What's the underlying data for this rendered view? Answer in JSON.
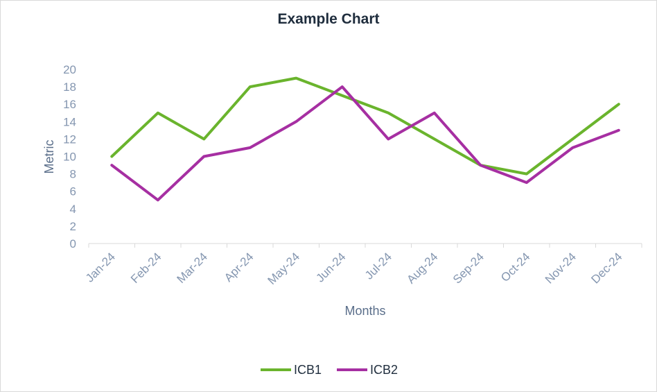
{
  "chart_data": {
    "type": "line",
    "title": "Example Chart",
    "xlabel": "Months",
    "ylabel": "Metric",
    "categories": [
      "Jan-24",
      "Feb-24",
      "Mar-24",
      "Apr-24",
      "May-24",
      "Jun-24",
      "Jul-24",
      "Aug-24",
      "Sep-24",
      "Oct-24",
      "Nov-24",
      "Dec-24"
    ],
    "ylim": [
      0,
      20
    ],
    "yticks": [
      0,
      2,
      4,
      6,
      8,
      10,
      12,
      14,
      16,
      18,
      20
    ],
    "grid": false,
    "legend_position": "bottom",
    "series": [
      {
        "name": "ICB1",
        "color": "#6ab42d",
        "values": [
          10,
          15,
          12,
          18,
          19,
          17,
          15,
          12,
          9,
          8,
          12,
          16
        ]
      },
      {
        "name": "ICB2",
        "color": "#a62fa2",
        "values": [
          9,
          5,
          10,
          11,
          14,
          18,
          12,
          15,
          9,
          7,
          11,
          13
        ]
      }
    ]
  }
}
